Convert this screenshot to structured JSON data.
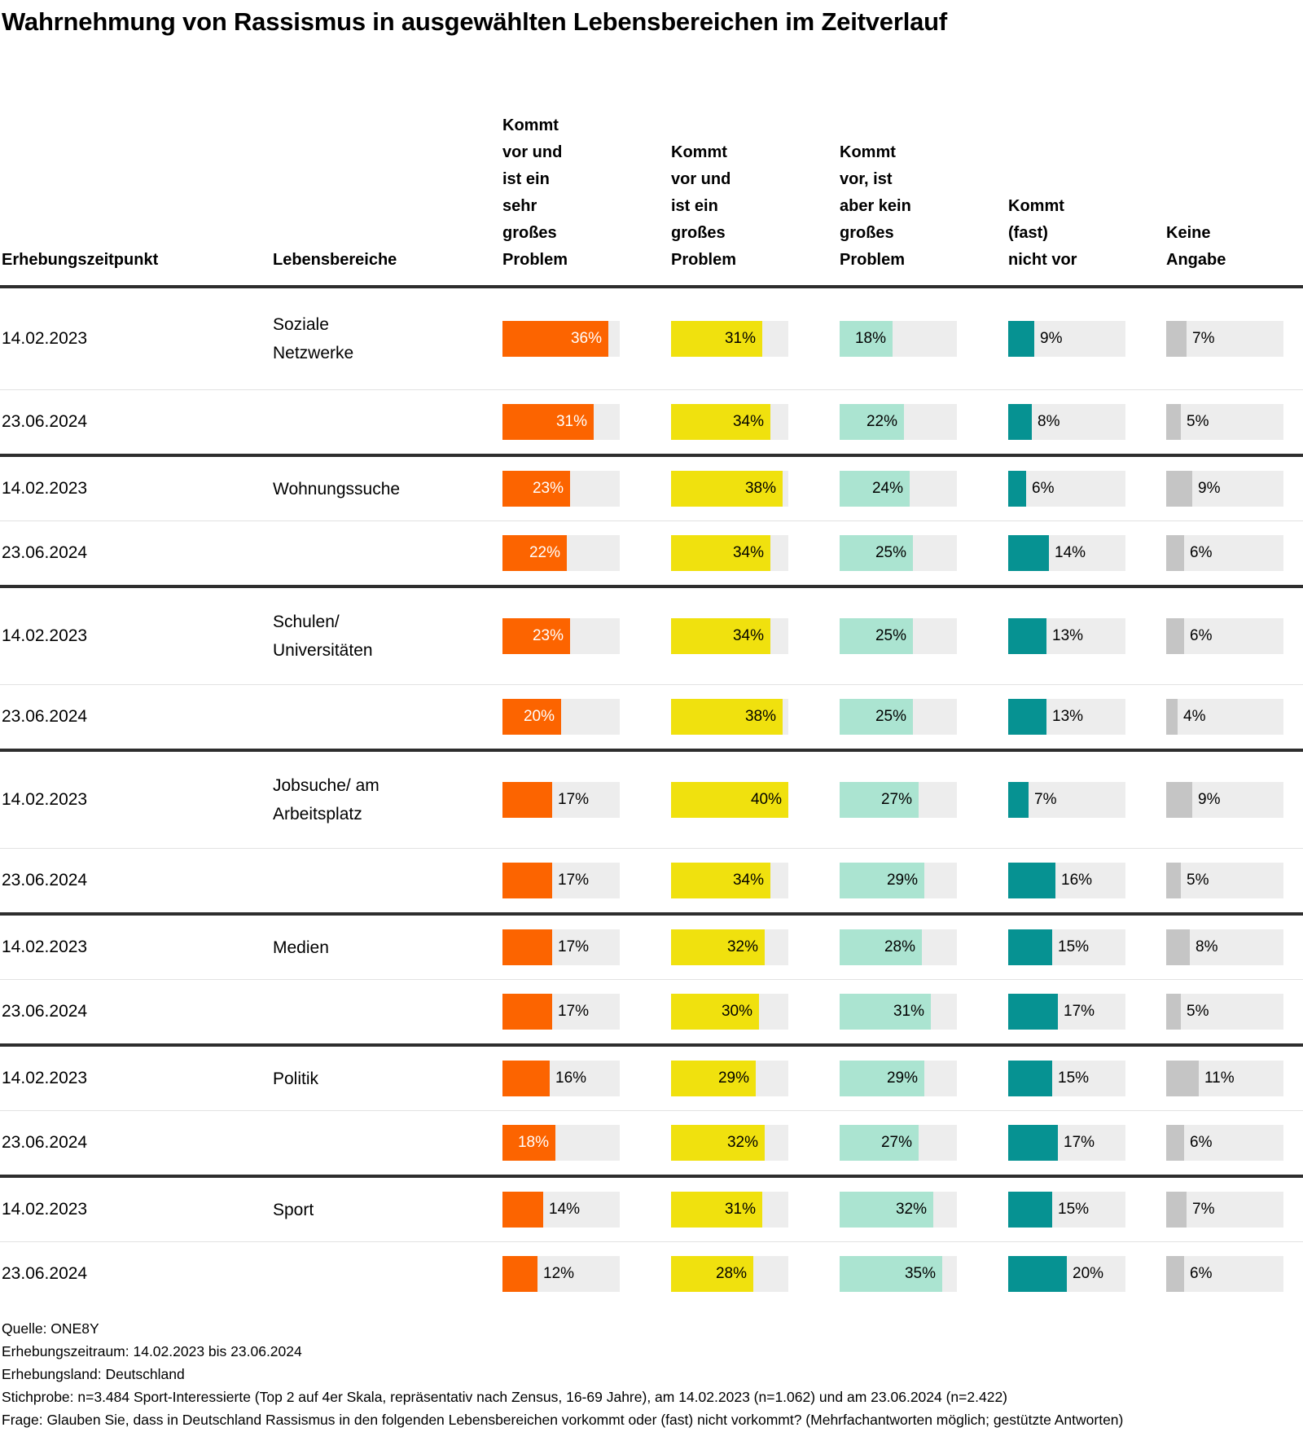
{
  "title": "Wahrnehmung von Rassismus in ausgewählten Lebensbereichen im Zeitverlauf",
  "colors": {
    "series": [
      "#fc6400",
      "#f0e10e",
      "#abe4d1",
      "#069292",
      "#c5c5c5"
    ],
    "track": "#ededed",
    "inside_label_on_orange": "#ffffff",
    "text": "#000000"
  },
  "chart_data": {
    "type": "bar",
    "title": "Wahrnehmung von Rassismus in ausgewählten Lebensbereichen im Zeitverlauf",
    "unit": "%",
    "axis_max": 40,
    "legend_position": "column-headers",
    "grid": false,
    "time_label": "Erhebungszeitpunkt",
    "group_label": "Lebensbereiche",
    "categories": [
      {
        "label": "Kommt vor und ist ein sehr großes Problem",
        "lines": [
          "Kommt",
          "vor und",
          "ist ein",
          "sehr",
          "großes",
          "Problem"
        ]
      },
      {
        "label": "Kommt vor und ist ein großes Problem",
        "lines": [
          "Kommt",
          "vor und",
          "ist ein",
          "großes",
          "Problem"
        ]
      },
      {
        "label": "Kommt vor, ist aber kein großes Problem",
        "lines": [
          "Kommt",
          "vor, ist",
          "aber kein",
          "großes",
          "Problem"
        ]
      },
      {
        "label": "Kommt (fast) nicht vor",
        "lines": [
          "Kommt",
          "(fast)",
          "nicht vor"
        ]
      },
      {
        "label": "Keine Angabe",
        "lines": [
          "Keine",
          "Angabe"
        ]
      }
    ],
    "groups": [
      {
        "area": "Soziale Netzwerke",
        "area_lines": [
          "Soziale",
          "Netzwerke"
        ],
        "rows": [
          {
            "date": "14.02.2023",
            "values": [
              36,
              31,
              18,
              9,
              7
            ]
          },
          {
            "date": "23.06.2024",
            "values": [
              31,
              34,
              22,
              8,
              5
            ]
          }
        ]
      },
      {
        "area": "Wohnungssuche",
        "area_lines": [
          "Wohnungssuche"
        ],
        "rows": [
          {
            "date": "14.02.2023",
            "values": [
              23,
              38,
              24,
              6,
              9
            ]
          },
          {
            "date": "23.06.2024",
            "values": [
              22,
              34,
              25,
              14,
              6
            ]
          }
        ]
      },
      {
        "area": "Schulen/ Universitäten",
        "area_lines": [
          "Schulen/",
          "Universitäten"
        ],
        "rows": [
          {
            "date": "14.02.2023",
            "values": [
              23,
              34,
              25,
              13,
              6
            ]
          },
          {
            "date": "23.06.2024",
            "values": [
              20,
              38,
              25,
              13,
              4
            ]
          }
        ]
      },
      {
        "area": "Jobsuche/ am Arbeitsplatz",
        "area_lines": [
          "Jobsuche/ am",
          "Arbeitsplatz"
        ],
        "rows": [
          {
            "date": "14.02.2023",
            "values": [
              17,
              40,
              27,
              7,
              9
            ]
          },
          {
            "date": "23.06.2024",
            "values": [
              17,
              34,
              29,
              16,
              5
            ]
          }
        ]
      },
      {
        "area": "Medien",
        "area_lines": [
          "Medien"
        ],
        "rows": [
          {
            "date": "14.02.2023",
            "values": [
              17,
              32,
              28,
              15,
              8
            ]
          },
          {
            "date": "23.06.2024",
            "values": [
              17,
              30,
              31,
              17,
              5
            ]
          }
        ]
      },
      {
        "area": "Politik",
        "area_lines": [
          "Politik"
        ],
        "rows": [
          {
            "date": "14.02.2023",
            "values": [
              16,
              29,
              29,
              15,
              11
            ]
          },
          {
            "date": "23.06.2024",
            "values": [
              18,
              32,
              27,
              17,
              6
            ]
          }
        ]
      },
      {
        "area": "Sport",
        "area_lines": [
          "Sport"
        ],
        "rows": [
          {
            "date": "14.02.2023",
            "values": [
              14,
              31,
              32,
              15,
              7
            ]
          },
          {
            "date": "23.06.2024",
            "values": [
              12,
              28,
              35,
              20,
              6
            ]
          }
        ]
      }
    ]
  },
  "footer": {
    "lines": [
      "Quelle: ONE8Y",
      "Erhebungszeitraum: 14.02.2023 bis 23.06.2024",
      "Erhebungsland: Deutschland",
      "Stichprobe: n=3.484 Sport-Interessierte (Top 2 auf 4er Skala, repräsentativ nach Zensus, 16-69 Jahre), am 14.02.2023 (n=1.062) und am 23.06.2024 (n=2.422)",
      "Frage: Glauben Sie, dass in Deutschland Rassismus in den folgenden Lebensbereichen vorkommt oder (fast) nicht vorkommt? (Mehrfachantworten möglich; gestützte Antworten)"
    ]
  }
}
